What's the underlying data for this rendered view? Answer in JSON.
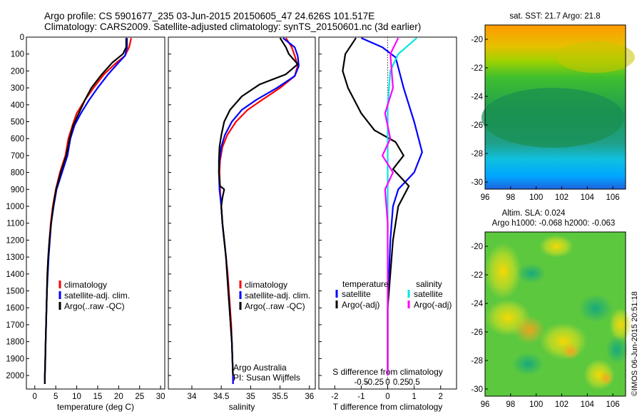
{
  "title_line1": "Argo profile: CS 5901677_235 03-Jun-2015 20150605_47 24.626S 101.517E",
  "title_line2": "Climatology: CARS2009. Satellite-adjusted climatology: synTS_20150601.nc (3d earlier)",
  "timestamp": "©IMOS 06-Jun-2015 20:51:18",
  "colors": {
    "climatology": "#ff0000",
    "satellite": "#0000ff",
    "argo": "#000000",
    "sat_salinity": "#00e5e5",
    "argo_salinity": "#ff00ff"
  },
  "chart_data": [
    {
      "type": "line",
      "xlabel": "temperature (deg C)",
      "xlim": [
        -2,
        31
      ],
      "xticks": [
        0,
        5,
        10,
        15,
        20,
        25,
        30
      ],
      "ylim": [
        2080,
        0
      ],
      "yticks": [
        0,
        100,
        200,
        300,
        400,
        500,
        600,
        700,
        800,
        900,
        1000,
        1100,
        1200,
        1300,
        1400,
        1500,
        1600,
        1700,
        1800,
        1900,
        2000
      ],
      "legend": {
        "position": "center-left",
        "entries": [
          "climatology",
          "satellite-adj. clim.",
          "Argo(..raw -QC)"
        ]
      },
      "series": [
        {
          "name": "climatology",
          "color": "#ff0000",
          "points": [
            [
              23,
              5
            ],
            [
              22.5,
              60
            ],
            [
              21.5,
              110
            ],
            [
              19.5,
              150
            ],
            [
              16.5,
              220
            ],
            [
              14,
              300
            ],
            [
              12,
              370
            ],
            [
              10,
              450
            ],
            [
              9,
              520
            ],
            [
              8,
              600
            ],
            [
              7.3,
              700
            ],
            [
              6,
              800
            ],
            [
              5,
              900
            ],
            [
              4.3,
              1000
            ],
            [
              3.8,
              1100
            ],
            [
              3.5,
              1200
            ],
            [
              3.2,
              1300
            ],
            [
              3,
              1400
            ],
            [
              2.9,
              1500
            ],
            [
              2.8,
              1600
            ],
            [
              2.7,
              1700
            ],
            [
              2.6,
              1800
            ],
            [
              2.5,
              1900
            ],
            [
              2.4,
              2000
            ],
            [
              2.4,
              2050
            ]
          ]
        },
        {
          "name": "satellite-adj. clim.",
          "color": "#0000ff",
          "points": [
            [
              22,
              5
            ],
            [
              22,
              60
            ],
            [
              21.5,
              110
            ],
            [
              20,
              150
            ],
            [
              17.5,
              220
            ],
            [
              15,
              300
            ],
            [
              13,
              370
            ],
            [
              11,
              450
            ],
            [
              9.5,
              520
            ],
            [
              8.5,
              600
            ],
            [
              7.8,
              700
            ],
            [
              6.5,
              800
            ],
            [
              5.2,
              900
            ],
            [
              4.5,
              1000
            ],
            [
              3.9,
              1100
            ],
            [
              3.6,
              1200
            ],
            [
              3.3,
              1300
            ],
            [
              3.1,
              1400
            ],
            [
              2.9,
              1500
            ],
            [
              2.8,
              1600
            ],
            [
              2.7,
              1700
            ],
            [
              2.6,
              1800
            ],
            [
              2.5,
              1900
            ],
            [
              2.4,
              2000
            ],
            [
              2.4,
              2050
            ]
          ]
        },
        {
          "name": "Argo(..raw -QC)",
          "color": "#000000",
          "points": [
            [
              21.8,
              5
            ],
            [
              21.8,
              60
            ],
            [
              21,
              100
            ],
            [
              18.5,
              150
            ],
            [
              16,
              220
            ],
            [
              13.5,
              300
            ],
            [
              12,
              370
            ],
            [
              10.5,
              450
            ],
            [
              9.2,
              520
            ],
            [
              8.3,
              600
            ],
            [
              7.5,
              700
            ],
            [
              6.2,
              800
            ],
            [
              5.1,
              900
            ],
            [
              4.4,
              1000
            ],
            [
              3.9,
              1100
            ],
            [
              3.5,
              1200
            ],
            [
              3.2,
              1300
            ],
            [
              3,
              1400
            ],
            [
              2.9,
              1500
            ],
            [
              2.8,
              1600
            ],
            [
              2.7,
              1700
            ],
            [
              2.6,
              1800
            ],
            [
              2.5,
              1900
            ],
            [
              2.4,
              2000
            ],
            [
              2.4,
              2050
            ]
          ]
        }
      ]
    },
    {
      "type": "line",
      "xlabel": "salinity",
      "xlim": [
        33.6,
        36.1
      ],
      "xticks": [
        34,
        34.5,
        35,
        35.5,
        36
      ],
      "xticklabels": [
        "34",
        "34.5",
        "35",
        "35.5",
        "36"
      ],
      "ylim": [
        2080,
        0
      ],
      "legend": {
        "position": "center-right",
        "entries": [
          "climatology",
          "satellite-adj. clim.",
          "Argo(..raw -QC)"
        ]
      },
      "annotation": [
        "Argo Australia",
        "PI: Susan Wijffels"
      ],
      "series": [
        {
          "name": "climatology",
          "color": "#ff0000",
          "points": [
            [
              35.6,
              5
            ],
            [
              35.7,
              60
            ],
            [
              35.75,
              110
            ],
            [
              35.8,
              170
            ],
            [
              35.75,
              230
            ],
            [
              35.5,
              300
            ],
            [
              35.2,
              370
            ],
            [
              34.95,
              430
            ],
            [
              34.75,
              500
            ],
            [
              34.6,
              580
            ],
            [
              34.52,
              650
            ],
            [
              34.48,
              730
            ],
            [
              34.47,
              800
            ],
            [
              34.48,
              900
            ],
            [
              34.5,
              1000
            ],
            [
              34.52,
              1100
            ],
            [
              34.55,
              1200
            ],
            [
              34.58,
              1300
            ],
            [
              34.61,
              1400
            ],
            [
              34.63,
              1500
            ],
            [
              34.65,
              1600
            ],
            [
              34.67,
              1700
            ],
            [
              34.68,
              1800
            ],
            [
              34.69,
              1900
            ],
            [
              34.7,
              2000
            ],
            [
              34.7,
              2050
            ]
          ]
        },
        {
          "name": "satellite-adj. clim.",
          "color": "#0000ff",
          "points": [
            [
              35.55,
              5
            ],
            [
              35.75,
              60
            ],
            [
              35.8,
              110
            ],
            [
              35.82,
              170
            ],
            [
              35.75,
              230
            ],
            [
              35.45,
              300
            ],
            [
              35.1,
              370
            ],
            [
              34.85,
              430
            ],
            [
              34.68,
              500
            ],
            [
              34.56,
              580
            ],
            [
              34.5,
              650
            ],
            [
              34.47,
              730
            ],
            [
              34.46,
              800
            ],
            [
              34.47,
              900
            ],
            [
              34.5,
              1000
            ],
            [
              34.52,
              1100
            ],
            [
              34.55,
              1200
            ],
            [
              34.58,
              1300
            ],
            [
              34.6,
              1400
            ],
            [
              34.62,
              1500
            ],
            [
              34.64,
              1600
            ],
            [
              34.66,
              1700
            ],
            [
              34.68,
              1800
            ],
            [
              34.69,
              1900
            ],
            [
              34.7,
              2000
            ],
            [
              34.7,
              2050
            ]
          ]
        },
        {
          "name": "Argo(..raw -QC)",
          "color": "#000000",
          "points": [
            [
              35.5,
              5
            ],
            [
              35.6,
              60
            ],
            [
              35.65,
              100
            ],
            [
              35.8,
              160
            ],
            [
              35.6,
              220
            ],
            [
              35.15,
              280
            ],
            [
              34.85,
              350
            ],
            [
              34.65,
              430
            ],
            [
              34.55,
              500
            ],
            [
              34.5,
              580
            ],
            [
              34.47,
              650
            ],
            [
              34.46,
              730
            ],
            [
              34.46,
              800
            ],
            [
              34.48,
              880
            ],
            [
              34.55,
              900
            ],
            [
              34.52,
              950
            ],
            [
              34.5,
              1000
            ],
            [
              34.52,
              1100
            ],
            [
              34.55,
              1200
            ],
            [
              34.58,
              1300
            ],
            [
              34.6,
              1400
            ],
            [
              34.62,
              1500
            ],
            [
              34.64,
              1600
            ],
            [
              34.66,
              1700
            ],
            [
              34.68,
              1800
            ],
            [
              34.69,
              1900
            ],
            [
              34.7,
              2000
            ]
          ]
        }
      ]
    },
    {
      "type": "line",
      "xlabel": "T difference from climatology",
      "xlim": [
        -2.6,
        2.6
      ],
      "xticks": [
        -2,
        -1,
        0,
        1,
        2
      ],
      "secondary_axis": {
        "label": "S difference from climatology",
        "ticks": [
          "-0.5",
          "-0.25",
          "0",
          "0.25",
          "0.5"
        ]
      },
      "ylim": [
        2080,
        0
      ],
      "legend": {
        "position": "center",
        "groups": [
          {
            "title": "temperature",
            "entries": [
              "satellite",
              "Argo(-adj)"
            ]
          },
          {
            "title": "salinity",
            "entries": [
              "satellite",
              "Argo(-adj)"
            ]
          }
        ]
      },
      "series": [
        {
          "name": "temperature satellite",
          "color": "#0000ff",
          "points": [
            [
              -1,
              5
            ],
            [
              -0.2,
              60
            ],
            [
              0.3,
              120
            ],
            [
              0.6,
              300
            ],
            [
              1,
              500
            ],
            [
              1.3,
              680
            ],
            [
              1,
              800
            ],
            [
              0.4,
              900
            ],
            [
              0.2,
              1000
            ],
            [
              0.1,
              1200
            ],
            [
              0.05,
              1400
            ],
            [
              0,
              1600
            ],
            [
              0,
              2000
            ]
          ]
        },
        {
          "name": "temperature Argo(-adj)",
          "color": "#000000",
          "points": [
            [
              -1.2,
              5
            ],
            [
              -1.6,
              100
            ],
            [
              -1.7,
              200
            ],
            [
              -1.5,
              300
            ],
            [
              -1,
              450
            ],
            [
              -0.5,
              550
            ],
            [
              0.3,
              620
            ],
            [
              0.6,
              700
            ],
            [
              0.2,
              780
            ],
            [
              0.8,
              880
            ],
            [
              0.4,
              1000
            ],
            [
              0.2,
              1200
            ],
            [
              0.1,
              1400
            ],
            [
              0,
              1600
            ],
            [
              0,
              2000
            ]
          ]
        },
        {
          "name": "salinity satellite",
          "color": "#00e5e5",
          "points": [
            [
              1.1,
              5
            ],
            [
              0.4,
              100
            ],
            [
              0.1,
              200
            ],
            [
              0,
              400
            ],
            [
              0,
              900
            ],
            [
              0,
              1200
            ],
            [
              0,
              2000
            ]
          ]
        },
        {
          "name": "salinity Argo(-adj)",
          "color": "#ff00ff",
          "points": [
            [
              0.4,
              5
            ],
            [
              0.1,
              100
            ],
            [
              0.2,
              300
            ],
            [
              -0.1,
              450
            ],
            [
              0.1,
              600
            ],
            [
              -0.2,
              700
            ],
            [
              0.2,
              800
            ],
            [
              -0.1,
              900
            ],
            [
              0,
              1100
            ],
            [
              0,
              2000
            ]
          ]
        }
      ]
    },
    {
      "type": "heatmap",
      "title": "sat. SST: 21.7 Argo: 21.8",
      "xlim": [
        96,
        107
      ],
      "xticks": [
        96,
        98,
        100,
        102,
        104,
        106
      ],
      "ylim": [
        -30.5,
        -19
      ],
      "yticks": [
        -20,
        -22,
        -24,
        -26,
        -28,
        -30
      ]
    },
    {
      "type": "heatmap",
      "title_line1": "Altim. SLA: 0.024",
      "title_line2": "Argo h1000: -0.068 h2000: -0.063",
      "xlim": [
        96,
        107
      ],
      "xticks": [
        96,
        98,
        100,
        102,
        104,
        106
      ],
      "ylim": [
        -30.5,
        -19
      ],
      "yticks": [
        -20,
        -22,
        -24,
        -26,
        -28,
        -30
      ]
    }
  ]
}
